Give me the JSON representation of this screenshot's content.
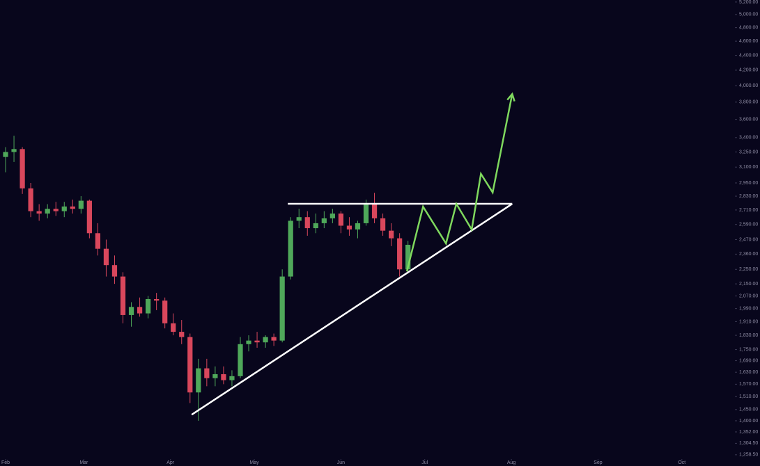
{
  "chart_data": {
    "type": "candlestick",
    "x": [
      0,
      3,
      6,
      9,
      12,
      15,
      18,
      21,
      24,
      27,
      30,
      33,
      36,
      39,
      42,
      45,
      48,
      51,
      54,
      57,
      60,
      63,
      66,
      69,
      72,
      75,
      78,
      81,
      84,
      87,
      90,
      93,
      96,
      99,
      102,
      105,
      108,
      111,
      114,
      117,
      120,
      123,
      126,
      129,
      132,
      135,
      138,
      141,
      144
    ],
    "open": [
      3200,
      3250,
      3280,
      2900,
      2700,
      2680,
      2720,
      2700,
      2740,
      2720,
      2790,
      2520,
      2400,
      2280,
      2200,
      1950,
      2000,
      1960,
      2050,
      2040,
      1900,
      1850,
      1820,
      1530,
      1650,
      1600,
      1620,
      1590,
      1610,
      1780,
      1800,
      1790,
      1820,
      1800,
      2200,
      2620,
      2650,
      2560,
      2600,
      2640,
      2680,
      2580,
      2550,
      2600,
      2760,
      2640,
      2540,
      2480,
      2250
    ],
    "high": [
      3300,
      3420,
      3300,
      2950,
      2760,
      2760,
      2780,
      2780,
      2800,
      2830,
      2800,
      2600,
      2470,
      2350,
      2230,
      2030,
      2060,
      2070,
      2090,
      2060,
      1960,
      1920,
      1840,
      1700,
      1700,
      1660,
      1660,
      1640,
      1820,
      1830,
      1850,
      1830,
      1840,
      2250,
      2650,
      2720,
      2700,
      2680,
      2700,
      2720,
      2700,
      2650,
      2620,
      2800,
      2860,
      2680,
      2600,
      2520,
      2460
    ],
    "low": [
      3050,
      3150,
      2850,
      2650,
      2620,
      2640,
      2660,
      2650,
      2680,
      2680,
      2480,
      2350,
      2200,
      2150,
      1900,
      1880,
      1940,
      1930,
      1980,
      1870,
      1830,
      1780,
      1480,
      1400,
      1560,
      1560,
      1570,
      1560,
      1600,
      1740,
      1760,
      1760,
      1770,
      1790,
      2180,
      2560,
      2500,
      2520,
      2560,
      2600,
      2520,
      2500,
      2480,
      2580,
      2600,
      2500,
      2420,
      2200,
      2230
    ],
    "close": [
      3250,
      3280,
      2900,
      2700,
      2680,
      2720,
      2700,
      2740,
      2720,
      2790,
      2520,
      2400,
      2280,
      2200,
      1950,
      2000,
      1960,
      2050,
      2040,
      1900,
      1850,
      1820,
      1530,
      1650,
      1600,
      1620,
      1590,
      1610,
      1780,
      1800,
      1790,
      1820,
      1800,
      2200,
      2620,
      2650,
      2560,
      2600,
      2640,
      2680,
      2580,
      2550,
      2600,
      2760,
      2640,
      2540,
      2480,
      2250,
      2430
    ],
    "up_color": "#4fa85a",
    "down_color": "#d9475c",
    "log_scale": true,
    "xlim": [
      -2,
      259
    ],
    "ylim": [
      1215,
      5233
    ],
    "xticks": [
      {
        "value": 0,
        "label": "Feb"
      },
      {
        "value": 28,
        "label": "Mar"
      },
      {
        "value": 59,
        "label": "Apr"
      },
      {
        "value": 89,
        "label": "May"
      },
      {
        "value": 120,
        "label": "Jun"
      },
      {
        "value": 150,
        "label": "Jul"
      },
      {
        "value": 181,
        "label": "Aug"
      },
      {
        "value": 212,
        "label": "Sep"
      },
      {
        "value": 242,
        "label": "Oct"
      }
    ],
    "yticks": [
      {
        "value": 5200,
        "label": "5,200.00"
      },
      {
        "value": 5000,
        "label": "5,000.00"
      },
      {
        "value": 4800,
        "label": "4,800.00"
      },
      {
        "value": 4600,
        "label": "4,600.00"
      },
      {
        "value": 4400,
        "label": "4,400.00"
      },
      {
        "value": 4200,
        "label": "4,200.00"
      },
      {
        "value": 4000,
        "label": "4,000.00"
      },
      {
        "value": 3800,
        "label": "3,800.00"
      },
      {
        "value": 3600,
        "label": "3,600.00"
      },
      {
        "value": 3400,
        "label": "3,400.00"
      },
      {
        "value": 3250,
        "label": "3,250.00"
      },
      {
        "value": 3100,
        "label": "3,100.00"
      },
      {
        "value": 2950,
        "label": "2,950.00"
      },
      {
        "value": 2830,
        "label": "2,830.00"
      },
      {
        "value": 2710,
        "label": "2,710.00"
      },
      {
        "value": 2590,
        "label": "2,590.00"
      },
      {
        "value": 2470,
        "label": "2,470.00"
      },
      {
        "value": 2360,
        "label": "2,360.00"
      },
      {
        "value": 2250,
        "label": "2,250.00"
      },
      {
        "value": 2150,
        "label": "2,150.00"
      },
      {
        "value": 2070,
        "label": "2,070.00"
      },
      {
        "value": 1990,
        "label": "1,990.00"
      },
      {
        "value": 1910,
        "label": "1,910.00"
      },
      {
        "value": 1830,
        "label": "1,830.00"
      },
      {
        "value": 1750,
        "label": "1,750.00"
      },
      {
        "value": 1690,
        "label": "1,690.00"
      },
      {
        "value": 1630,
        "label": "1,630.00"
      },
      {
        "value": 1570,
        "label": "1,570.00"
      },
      {
        "value": 1510,
        "label": "1,510.00"
      },
      {
        "value": 1450,
        "label": "1,450.00"
      },
      {
        "value": 1400,
        "label": "1,400.00"
      },
      {
        "value": 1352,
        "label": "1,352.00"
      },
      {
        "value": 1304.5,
        "label": "1,304.50"
      },
      {
        "value": 1258.5,
        "label": "1,258.50"
      }
    ],
    "annotations": [
      {
        "color": "#ffffff",
        "x": [
          101,
          181.3
        ],
        "values": [
          2763,
          2763
        ]
      },
      {
        "color": "#ffffff",
        "x": [
          66.6,
          181.3
        ],
        "values": [
          1427,
          2763
        ]
      },
      {
        "color": "#7fd85e",
        "arrow": true,
        "x": [
          143.6,
          149.4,
          157.6,
          161.3,
          166.8,
          170.1,
          174.3,
          181.3
        ],
        "values": [
          2236,
          2738,
          2440,
          2763,
          2549,
          3035,
          2863,
          3898
        ]
      }
    ]
  }
}
